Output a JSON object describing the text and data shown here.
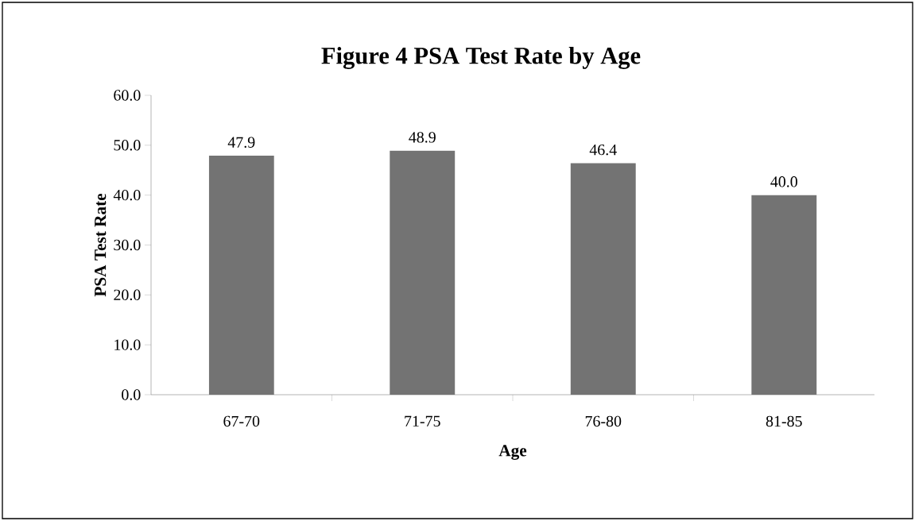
{
  "chart_data": {
    "type": "bar",
    "title": "Figure 4 PSA Test Rate by Age",
    "xlabel": "Age",
    "ylabel": "PSA Test Rate",
    "categories": [
      "67-70",
      "71-75",
      "76-80",
      "81-85"
    ],
    "values": [
      47.9,
      48.9,
      46.4,
      40.0
    ],
    "value_labels": [
      "47.9",
      "48.9",
      "46.4",
      "40.0"
    ],
    "color": "#737373",
    "ylim": [
      0,
      60
    ],
    "yticks": [
      {
        "value": 0,
        "label": "0.0"
      },
      {
        "value": 10,
        "label": "10.0"
      },
      {
        "value": 20,
        "label": "20.0"
      },
      {
        "value": 30,
        "label": "30.0"
      },
      {
        "value": 40,
        "label": "40.0"
      },
      {
        "value": 50,
        "label": "50.0"
      },
      {
        "value": 60,
        "label": "60.0"
      }
    ],
    "grid": false
  }
}
